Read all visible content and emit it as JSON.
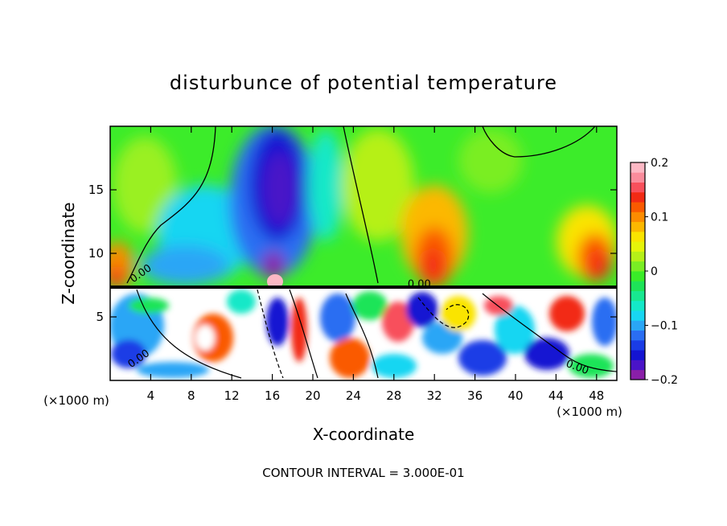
{
  "chart_data": {
    "type": "heatmap",
    "title": "disturbunce of potential temperature",
    "xlabel": "X-coordinate",
    "ylabel": "Z-coordinate",
    "x_unit_left": "(×1000 m)",
    "x_unit_right": "(×1000 m)",
    "footer": "CONTOUR INTERVAL = 3.000E-01",
    "xlim": [
      0,
      50
    ],
    "ylim": [
      0,
      20
    ],
    "x_ticks": [
      4,
      8,
      12,
      16,
      20,
      24,
      28,
      32,
      36,
      40,
      44,
      48
    ],
    "x_tick_labels": [
      "4",
      "8",
      "12",
      "16",
      "20",
      "24",
      "28",
      "32",
      "36",
      "40",
      "44",
      "48"
    ],
    "y_ticks": [
      5,
      10,
      15
    ],
    "y_tick_labels": [
      "5",
      "10",
      "15"
    ],
    "colorbar": {
      "range": [
        -0.2,
        0.2
      ],
      "tick_values": [
        0.2,
        0.1,
        0,
        -0.1,
        -0.2
      ],
      "tick_labels": [
        "0.2",
        "0.1",
        "0",
        "−0.1",
        "−0.2"
      ],
      "colors": [
        "#8a1fa8",
        "#4a14c8",
        "#1414d2",
        "#1a3ce6",
        "#2a6ef2",
        "#2aa6f6",
        "#18d6f2",
        "#14e8c8",
        "#18e890",
        "#1ee458",
        "#3aec28",
        "#7aee24",
        "#b6f018",
        "#e6f40a",
        "#fae400",
        "#fcb800",
        "#fc8c00",
        "#fa5a00",
        "#f22a14",
        "#f8505c",
        "#fa8c9c",
        "#fcb8c4"
      ]
    },
    "contour_labels": [
      {
        "text": "0.00",
        "x": 3.2,
        "y": 8.2,
        "rotate": -35
      },
      {
        "text": "0.00",
        "x": 3.0,
        "y": 1.5,
        "rotate": -35
      },
      {
        "text": "0.00",
        "x": 30.5,
        "y": 7.3,
        "rotate": 0
      },
      {
        "text": "0.00",
        "x": 46.0,
        "y": 0.8,
        "rotate": 20
      }
    ]
  }
}
